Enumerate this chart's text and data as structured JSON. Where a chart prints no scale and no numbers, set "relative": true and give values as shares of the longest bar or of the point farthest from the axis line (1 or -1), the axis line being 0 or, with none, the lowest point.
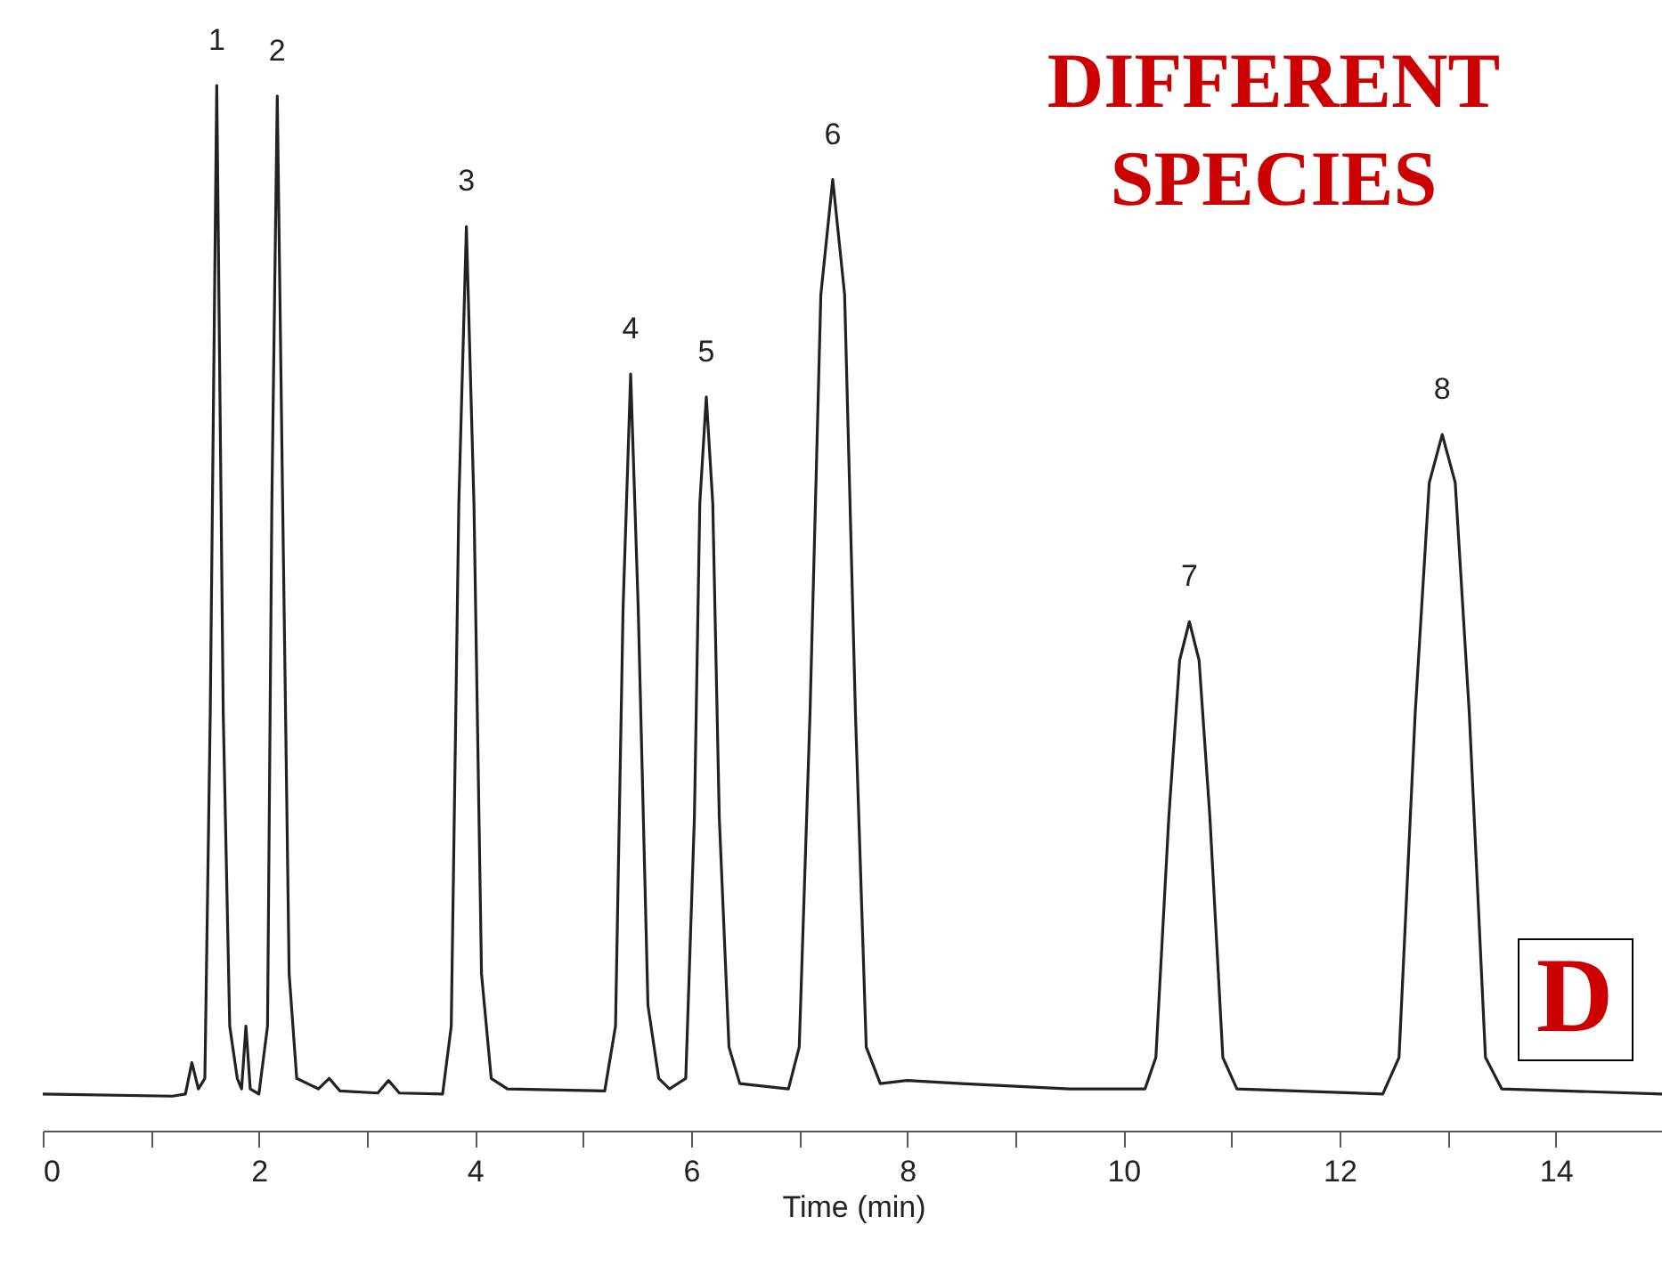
{
  "chart_data": {
    "type": "line",
    "xlabel": "Time (min)",
    "relative": true,
    "color": "#222222",
    "xlim": [
      0,
      15
    ],
    "xticks": [
      0,
      {
        "value": 1,
        "label": null
      },
      2,
      {
        "value": 3,
        "label": null
      },
      4,
      {
        "value": 5,
        "label": null
      },
      6,
      {
        "value": 7,
        "label": null
      },
      8,
      {
        "value": 9,
        "label": null
      },
      10,
      {
        "value": 11,
        "label": null
      },
      12,
      {
        "value": 13,
        "label": null
      },
      14
    ],
    "x": [
      0,
      1.2,
      1.32,
      1.38,
      1.44,
      1.5,
      1.55,
      1.61,
      1.67,
      1.73,
      1.8,
      1.84,
      1.88,
      1.92,
      2.0,
      2.08,
      2.12,
      2.17,
      2.22,
      2.28,
      2.35,
      2.45,
      2.55,
      2.65,
      2.75,
      3.1,
      3.2,
      3.3,
      3.7,
      3.78,
      3.85,
      3.92,
      3.99,
      4.06,
      4.15,
      4.3,
      5.2,
      5.3,
      5.37,
      5.44,
      5.51,
      5.6,
      5.7,
      5.8,
      5.95,
      6.03,
      6.08,
      6.14,
      6.2,
      6.26,
      6.35,
      6.45,
      6.9,
      7.0,
      7.1,
      7.2,
      7.31,
      7.42,
      7.52,
      7.62,
      7.75,
      8.0,
      8.5,
      9.5,
      10.2,
      10.3,
      10.42,
      10.52,
      10.61,
      10.7,
      10.8,
      10.92,
      11.05,
      12.4,
      12.55,
      12.7,
      12.83,
      12.95,
      13.07,
      13.2,
      13.35,
      13.5,
      15
    ],
    "values": [
      0.035,
      0.033,
      0.035,
      0.065,
      0.04,
      0.05,
      0.4,
      1.0,
      0.4,
      0.1,
      0.05,
      0.04,
      0.1,
      0.04,
      0.035,
      0.1,
      0.6,
      0.99,
      0.6,
      0.15,
      0.05,
      0.045,
      0.04,
      0.05,
      0.038,
      0.036,
      0.048,
      0.036,
      0.035,
      0.1,
      0.6,
      0.865,
      0.6,
      0.15,
      0.05,
      0.04,
      0.038,
      0.1,
      0.5,
      0.724,
      0.5,
      0.12,
      0.05,
      0.04,
      0.05,
      0.3,
      0.6,
      0.702,
      0.6,
      0.3,
      0.08,
      0.045,
      0.04,
      0.08,
      0.4,
      0.8,
      0.91,
      0.8,
      0.4,
      0.08,
      0.045,
      0.048,
      0.045,
      0.04,
      0.04,
      0.07,
      0.3,
      0.45,
      0.487,
      0.45,
      0.3,
      0.07,
      0.04,
      0.035,
      0.07,
      0.4,
      0.62,
      0.666,
      0.62,
      0.4,
      0.07,
      0.04,
      0.035
    ],
    "annotations": [
      {
        "text": "1",
        "x": 1.61,
        "y": 1.0
      },
      {
        "text": "2",
        "x": 2.17,
        "y": 0.99
      },
      {
        "text": "3",
        "x": 3.92,
        "y": 0.865
      },
      {
        "text": "4",
        "x": 5.44,
        "y": 0.724
      },
      {
        "text": "5",
        "x": 6.14,
        "y": 0.702
      },
      {
        "text": "6",
        "x": 7.31,
        "y": 0.91
      },
      {
        "text": "7",
        "x": 10.61,
        "y": 0.487
      },
      {
        "text": "8",
        "x": 12.95,
        "y": 0.666
      },
      "DIFFERENT SPECIES",
      "D"
    ]
  }
}
